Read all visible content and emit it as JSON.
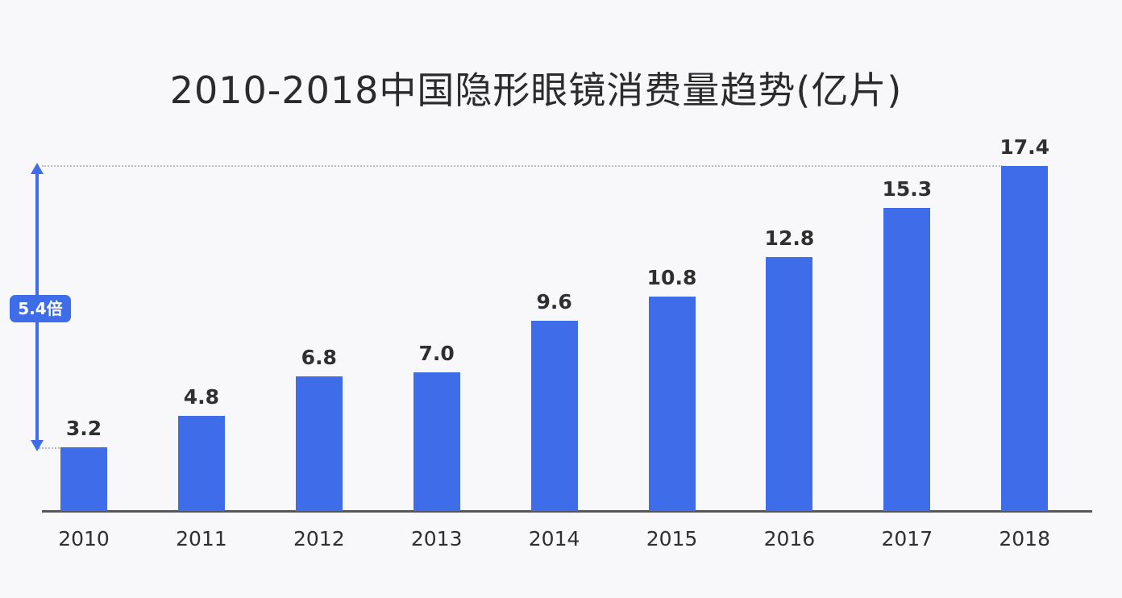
{
  "chart_data": {
    "type": "bar",
    "title": "2010-2018中国隐形眼镜消费量趋势(亿片)",
    "xlabel": "",
    "ylabel": "",
    "unit": "亿片",
    "categories": [
      "2010",
      "2011",
      "2012",
      "2013",
      "2014",
      "2015",
      "2016",
      "2017",
      "2018"
    ],
    "values": [
      3.2,
      4.8,
      6.8,
      7.0,
      9.6,
      10.8,
      12.8,
      15.3,
      17.4
    ],
    "value_labels": [
      "3.2",
      "4.8",
      "6.8",
      "7.0",
      "9.6",
      "10.8",
      "12.8",
      "15.3",
      "17.4"
    ],
    "ylim": [
      0,
      17.4
    ],
    "grid": false,
    "legend": null,
    "bar_color": "#3f6ce9",
    "annotation": {
      "type": "growth-arrow",
      "from": "2010",
      "to": "2018",
      "label": "5.4倍"
    }
  }
}
